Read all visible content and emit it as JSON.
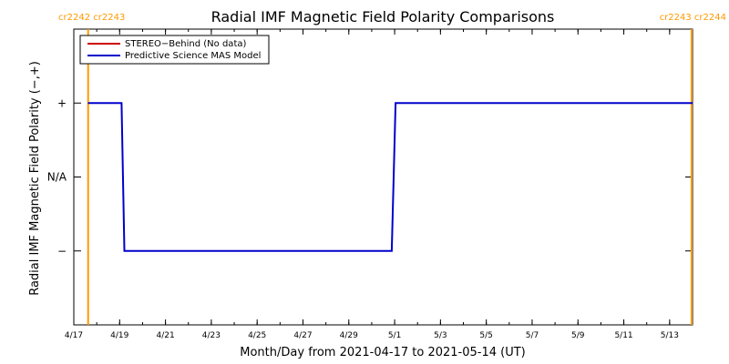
{
  "chart_data": {
    "type": "line",
    "title": "Radial IMF Magnetic Field Polarity Comparisons",
    "xlabel": "Month/Day from 2021-04-17 to 2021-05-14 (UT)",
    "ylabel": "Radial IMF Magnetic Field Polarity (−,+)",
    "x_range": [
      "2021-04-17",
      "2021-05-14"
    ],
    "x_ticks": [
      {
        "date": "2021-04-17",
        "label": "4/17"
      },
      {
        "date": "2021-04-19",
        "label": "4/19"
      },
      {
        "date": "2021-04-21",
        "label": "4/21"
      },
      {
        "date": "2021-04-23",
        "label": "4/23"
      },
      {
        "date": "2021-04-25",
        "label": "4/25"
      },
      {
        "date": "2021-04-27",
        "label": "4/27"
      },
      {
        "date": "2021-04-29",
        "label": "4/29"
      },
      {
        "date": "2021-05-01",
        "label": "5/1"
      },
      {
        "date": "2021-05-03",
        "label": "5/3"
      },
      {
        "date": "2021-05-05",
        "label": "5/5"
      },
      {
        "date": "2021-05-07",
        "label": "5/7"
      },
      {
        "date": "2021-05-09",
        "label": "5/9"
      },
      {
        "date": "2021-05-11",
        "label": "5/11"
      },
      {
        "date": "2021-05-13",
        "label": "5/13"
      }
    ],
    "y_range": [
      -2,
      2
    ],
    "y_ticks": [
      {
        "value": 1,
        "label": "+"
      },
      {
        "value": 0,
        "label": "N/A"
      },
      {
        "value": -1,
        "label": "−"
      }
    ],
    "legend": {
      "placement": "top-left",
      "entries": [
        {
          "label": "STEREO−Behind (No data)",
          "color": "#cc0000"
        },
        {
          "label": "Predictive Science MAS Model",
          "color": "#0000cc"
        }
      ]
    },
    "carrington_markers": [
      {
        "date": "2021-04-17T15:00",
        "color": "#ff9900",
        "labels": [
          "cr2242",
          "cr2243"
        ],
        "label_side": "left"
      },
      {
        "date": "2021-05-13T23:00",
        "color": "#ff9900",
        "labels": [
          "cr2243",
          "cr2244"
        ],
        "label_side": "right"
      }
    ],
    "series": [
      {
        "name": "Predictive Science MAS Model",
        "color": "#0000cc",
        "points": [
          {
            "x": "2021-04-17T15:00",
            "y": 1
          },
          {
            "x": "2021-04-19T02:00",
            "y": 1
          },
          {
            "x": "2021-04-19T05:00",
            "y": -1
          },
          {
            "x": "2021-04-30T21:00",
            "y": -1
          },
          {
            "x": "2021-05-01T01:00",
            "y": 1
          },
          {
            "x": "2021-05-14T00:00",
            "y": 1
          }
        ]
      }
    ]
  }
}
